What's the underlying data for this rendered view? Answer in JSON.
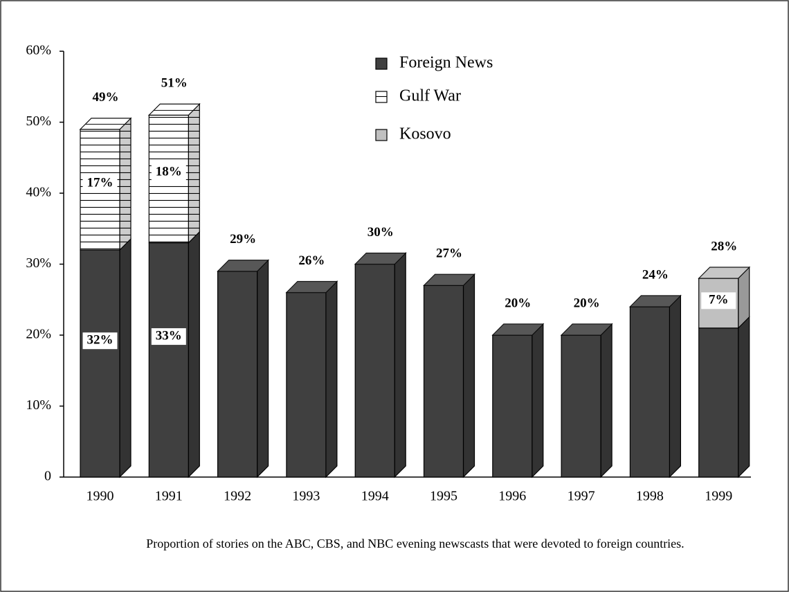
{
  "chart_data": {
    "type": "stacked-bar-3d",
    "caption": "Proportion of stories on the ABC, CBS, and NBC evening newscasts that were devoted to foreign countries.",
    "categories": [
      "1990",
      "1991",
      "1992",
      "1993",
      "1994",
      "1995",
      "1996",
      "1997",
      "1998",
      "1999"
    ],
    "series": [
      {
        "name": "Foreign News",
        "color": "#404040",
        "values": [
          32,
          33,
          29,
          26,
          30,
          27,
          20,
          20,
          24,
          21
        ],
        "value_labels": [
          "32%",
          "33%",
          null,
          null,
          null,
          null,
          null,
          null,
          null,
          null
        ]
      },
      {
        "name": "Gulf War",
        "color": "#ffffff",
        "pattern": "horizontal-lines",
        "values": [
          17,
          18,
          null,
          null,
          null,
          null,
          null,
          null,
          null,
          null
        ],
        "value_labels": [
          "17%",
          "18%",
          null,
          null,
          null,
          null,
          null,
          null,
          null,
          null
        ]
      },
      {
        "name": "Kosovo",
        "color": "#c0c0c0",
        "values": [
          null,
          null,
          null,
          null,
          null,
          null,
          null,
          null,
          null,
          7
        ],
        "value_labels": [
          null,
          null,
          null,
          null,
          null,
          null,
          null,
          null,
          null,
          "7%"
        ]
      }
    ],
    "totals": [
      49,
      51,
      29,
      26,
      30,
      27,
      20,
      20,
      24,
      28
    ],
    "total_labels": [
      "49%",
      "51%",
      "29%",
      "26%",
      "30%",
      "27%",
      "20%",
      "20%",
      "24%",
      "28%"
    ],
    "ylim": [
      0,
      60
    ],
    "yticks": [
      0,
      {
        "value": 10,
        "label": "10%"
      },
      {
        "value": 20,
        "label": "20%"
      },
      {
        "value": 30,
        "label": "30%"
      },
      {
        "value": 40,
        "label": "40%"
      },
      {
        "value": 50,
        "label": "50%"
      },
      {
        "value": 60,
        "label": "60%"
      }
    ],
    "legend": "top"
  }
}
